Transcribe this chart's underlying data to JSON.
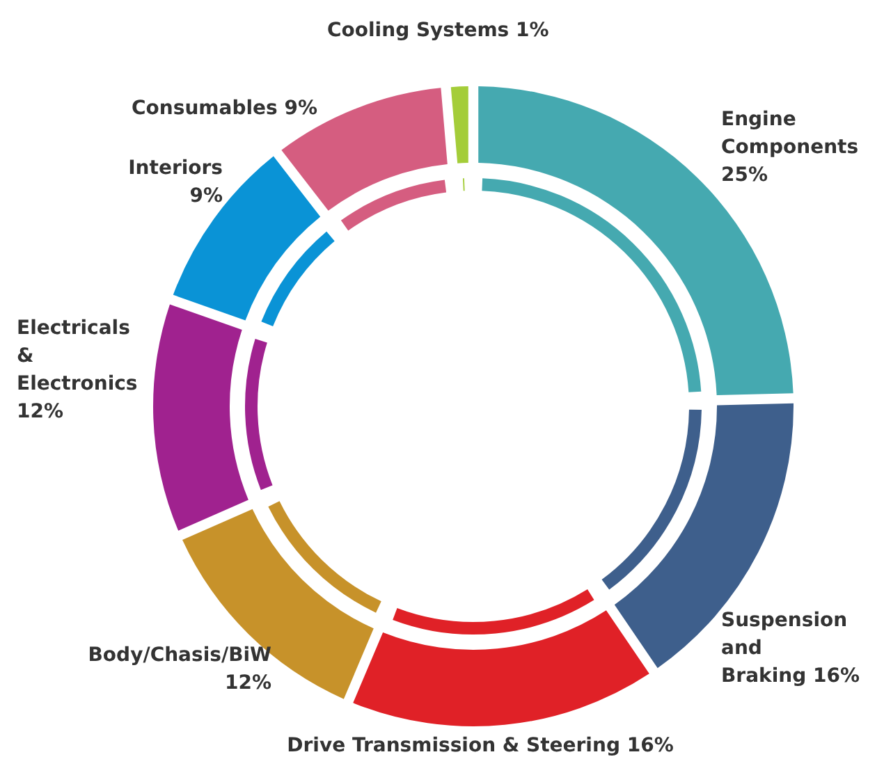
{
  "chart_data": {
    "type": "donut",
    "categories": [
      "Engine Components",
      "Suspension and Braking",
      "Drive Transmission & Steering",
      "Body/Chasis/BiW",
      "Electricals & Electronics",
      "Interiors",
      "Consumables",
      "Cooling Systems"
    ],
    "values": [
      25,
      16,
      16,
      12,
      12,
      9,
      9,
      1
    ],
    "value_labels": [
      "25%",
      "16%",
      "16%",
      "12%",
      "12%",
      "9%",
      "9%",
      "1%"
    ],
    "colors": [
      "#45a9b0",
      "#3e5f8c",
      "#e02127",
      "#c7922a",
      "#a0228f",
      "#0a93d6",
      "#d55d80",
      "#a4cd39"
    ]
  }
}
